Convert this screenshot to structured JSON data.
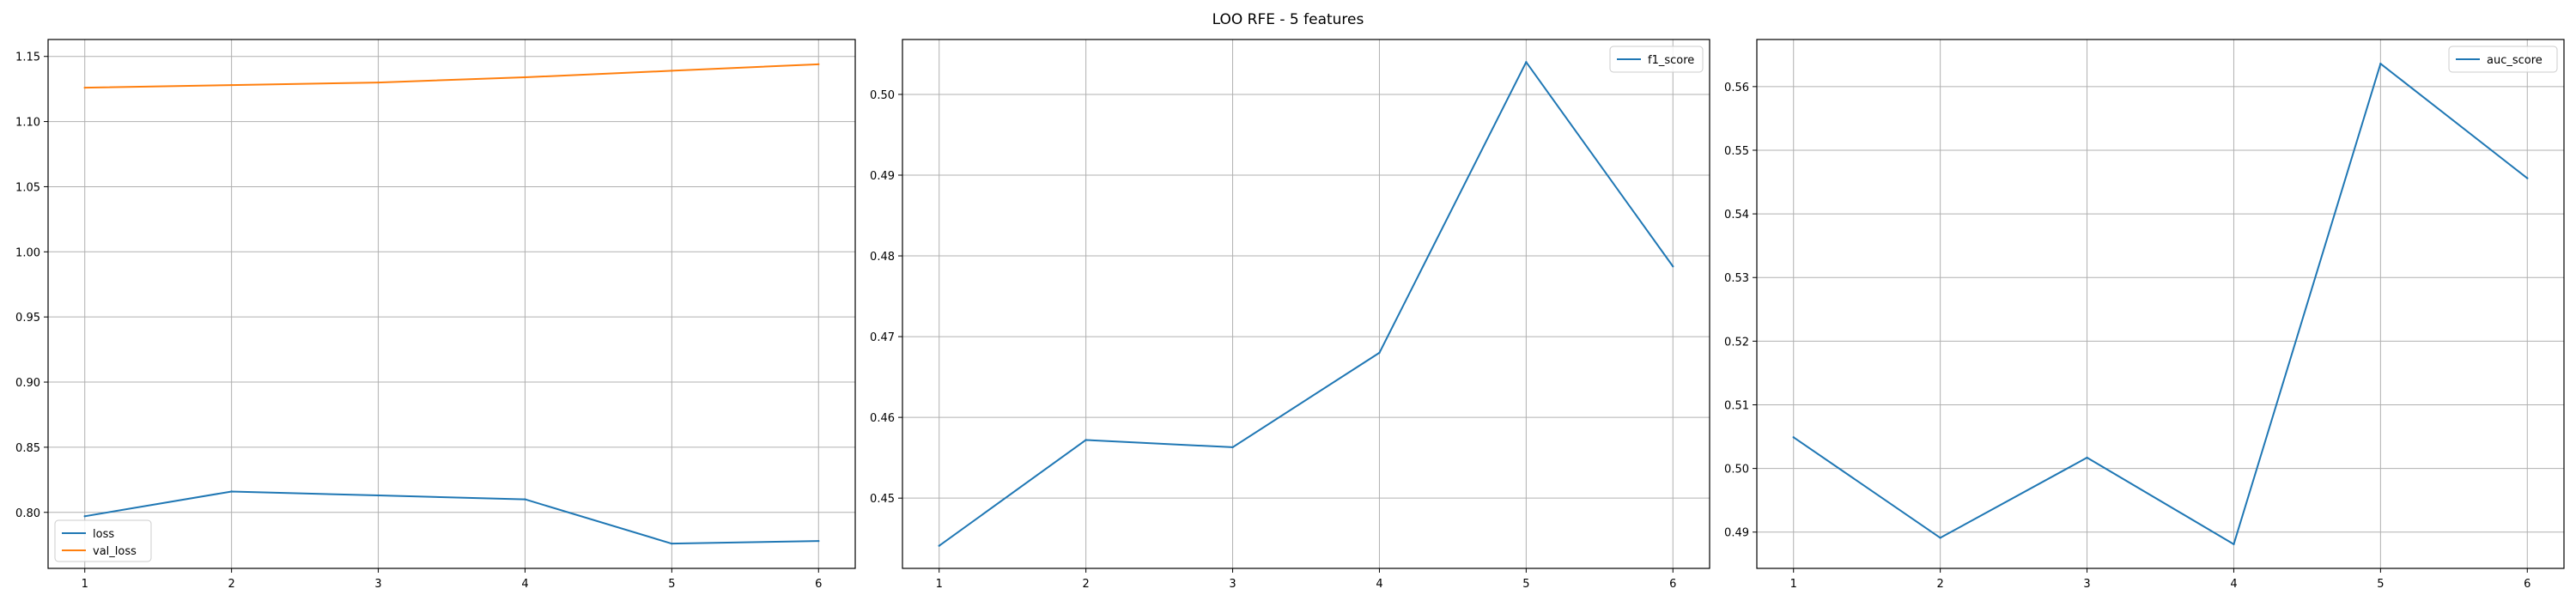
{
  "figure": {
    "title": "LOO RFE - 5 features",
    "colors": {
      "blue": "#1f77b4",
      "orange": "#ff7f0e",
      "grid": "#b0b0b0",
      "frame": "#000000"
    }
  },
  "chart_data": [
    {
      "type": "line",
      "x": [
        1,
        2,
        3,
        4,
        5,
        6
      ],
      "series": [
        {
          "name": "loss",
          "color": "#1f77b4",
          "values": [
            0.797,
            0.816,
            0.813,
            0.81,
            0.776,
            0.778
          ]
        },
        {
          "name": "val_loss",
          "color": "#ff7f0e",
          "values": [
            1.126,
            1.128,
            1.13,
            1.134,
            1.139,
            1.144
          ]
        }
      ],
      "xlim": [
        0.75,
        6.25
      ],
      "ylim": [
        0.757,
        1.163
      ],
      "xticks": [
        "1",
        "2",
        "3",
        "4",
        "5",
        "6"
      ],
      "yticks": [
        "0.80",
        "0.85",
        "0.90",
        "0.95",
        "1.00",
        "1.05",
        "1.10",
        "1.15"
      ],
      "grid": true,
      "legend": "lower-left"
    },
    {
      "type": "line",
      "x": [
        1,
        2,
        3,
        4,
        5,
        6
      ],
      "series": [
        {
          "name": "f1_score",
          "color": "#1f77b4",
          "values": [
            0.4441,
            0.4572,
            0.4563,
            0.468,
            0.504,
            0.4787
          ]
        }
      ],
      "xlim": [
        0.75,
        6.25
      ],
      "ylim": [
        0.4413,
        0.5068
      ],
      "xticks": [
        "1",
        "2",
        "3",
        "4",
        "5",
        "6"
      ],
      "yticks": [
        "0.45",
        "0.46",
        "0.47",
        "0.48",
        "0.49",
        "0.50"
      ],
      "grid": true,
      "legend": "upper-right"
    },
    {
      "type": "line",
      "x": [
        1,
        2,
        3,
        4,
        5,
        6
      ],
      "series": [
        {
          "name": "auc_score",
          "color": "#1f77b4",
          "values": [
            0.5049,
            0.4891,
            0.5017,
            0.4881,
            0.5636,
            0.5456
          ]
        }
      ],
      "xlim": [
        0.75,
        6.25
      ],
      "ylim": [
        0.4843,
        0.5674
      ],
      "xticks": [
        "1",
        "2",
        "3",
        "4",
        "5",
        "6"
      ],
      "yticks": [
        "0.49",
        "0.50",
        "0.51",
        "0.52",
        "0.53",
        "0.54",
        "0.55",
        "0.56"
      ],
      "grid": true,
      "legend": "upper-right"
    }
  ]
}
